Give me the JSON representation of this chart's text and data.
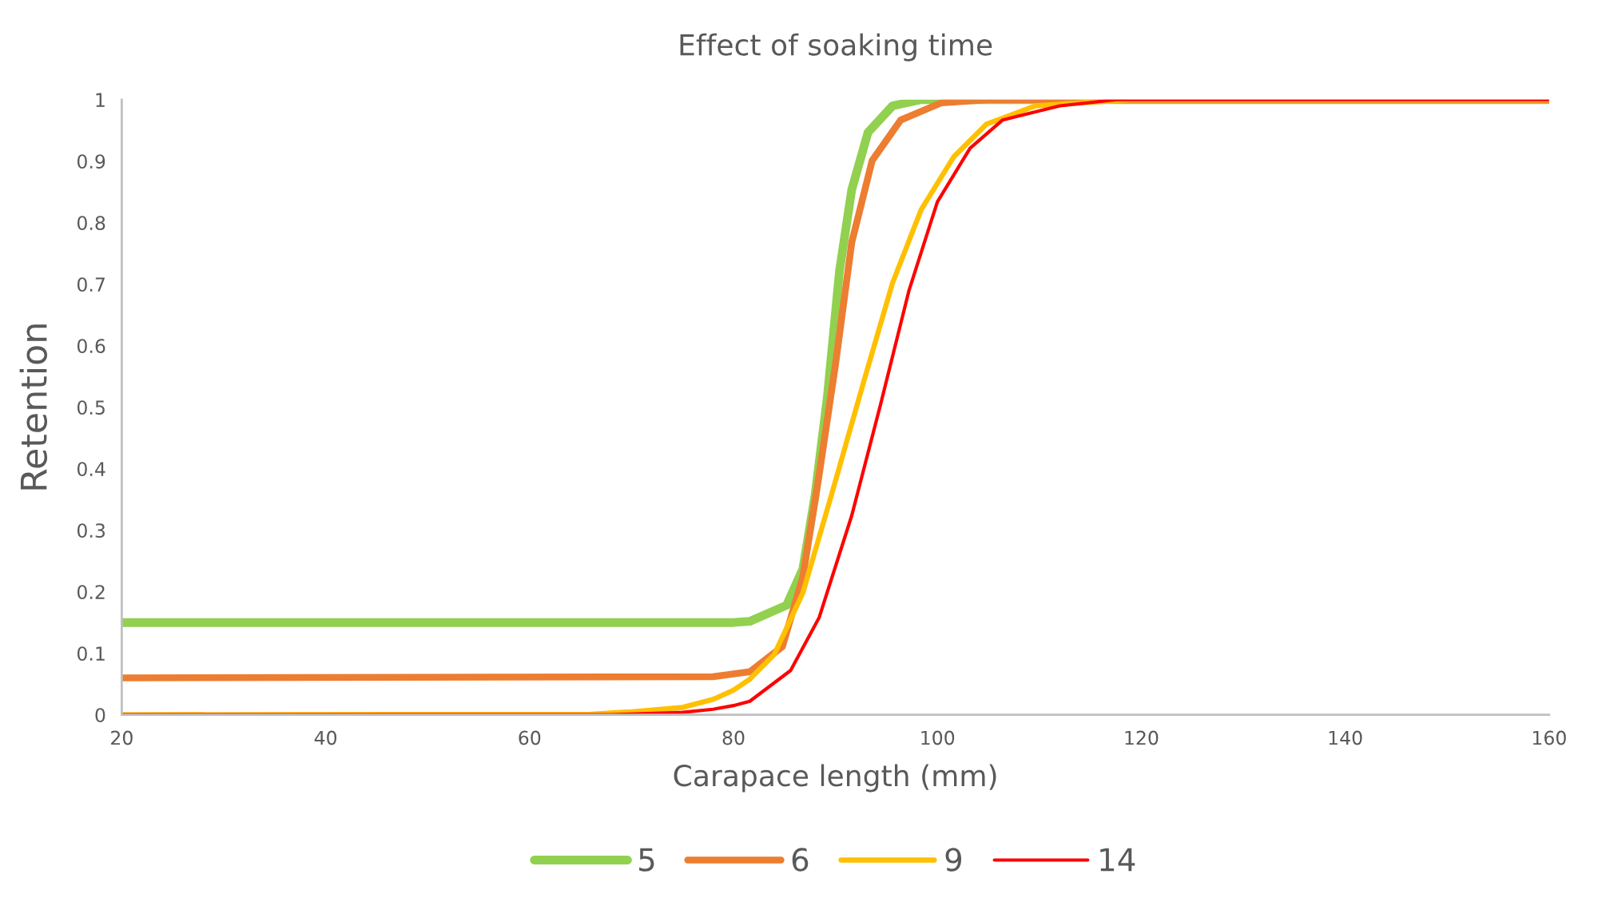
{
  "chart_data": {
    "type": "line",
    "title": "Effect of soaking time",
    "xlabel": "Carapace length (mm)",
    "ylabel": "Retention",
    "xlim": [
      20,
      160
    ],
    "xticks": [
      20,
      40,
      60,
      80,
      100,
      120,
      140,
      160
    ],
    "ylim": [
      0,
      1
    ],
    "yticks": [
      0,
      0.1,
      0.2,
      0.3,
      0.4,
      0.5,
      0.6,
      0.7,
      0.8,
      0.9,
      1
    ],
    "grid": false,
    "legend": "bottom",
    "marker": "none",
    "line_style": "solid",
    "series": [
      {
        "name": "5",
        "color": "#92d050",
        "x": [
          20,
          80,
          81.6,
          85.2,
          86.8,
          88.0,
          89.2,
          90.4,
          91.6,
          93.2,
          95.6,
          98.4,
          160
        ],
        "values": [
          0.15,
          0.15,
          0.152,
          0.178,
          0.237,
          0.357,
          0.516,
          0.722,
          0.854,
          0.947,
          0.99,
          1.0,
          1.0
        ]
      },
      {
        "name": "6",
        "color": "#ed7d31",
        "x": [
          20,
          78,
          81.6,
          84.8,
          86.8,
          88.4,
          90.0,
          91.6,
          93.6,
          96.4,
          100.4,
          105,
          160
        ],
        "values": [
          0.06,
          0.062,
          0.07,
          0.111,
          0.224,
          0.39,
          0.569,
          0.768,
          0.901,
          0.967,
          0.995,
          1.0,
          1.0
        ]
      },
      {
        "name": "9",
        "color": "#ffc000",
        "x": [
          20,
          66,
          70,
          75,
          78,
          80,
          81.6,
          84.0,
          86.8,
          89.6,
          92.8,
          95.6,
          98.4,
          101.6,
          104.8,
          109.6,
          118.8,
          160
        ],
        "values": [
          0,
          0.001,
          0.005,
          0.012,
          0.025,
          0.04,
          0.058,
          0.098,
          0.198,
          0.357,
          0.543,
          0.702,
          0.821,
          0.907,
          0.96,
          0.99,
          1.0,
          1.0
        ]
      },
      {
        "name": "14",
        "color": "#ff0000",
        "x": [
          20,
          68,
          70,
          75,
          78,
          80,
          81.6,
          85.6,
          88.4,
          91.6,
          94.4,
          97.2,
          100.0,
          103.2,
          106.4,
          112.0,
          117.6,
          160
        ],
        "values": [
          0,
          0,
          0.001,
          0.004,
          0.009,
          0.015,
          0.022,
          0.072,
          0.158,
          0.324,
          0.503,
          0.689,
          0.834,
          0.921,
          0.967,
          0.99,
          1.0,
          1.0
        ]
      }
    ]
  }
}
